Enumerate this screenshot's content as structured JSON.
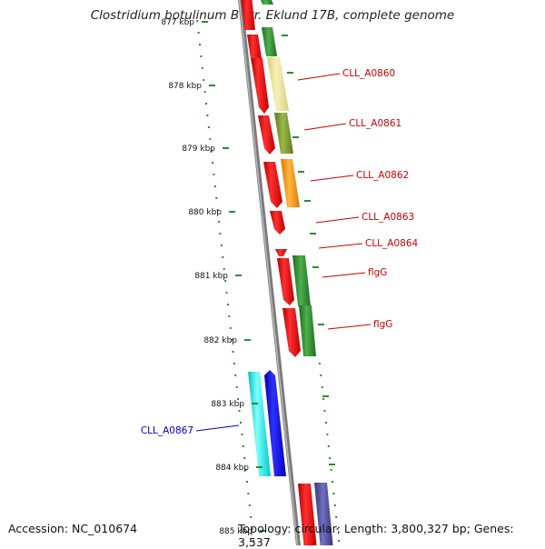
{
  "title": "Clostridium botulinum B str. Eklund 17B, complete genome",
  "accession": "Accession: NC_010674",
  "topology": "Topology: circular; Length: 3,800,327 bp; Genes: 3,537",
  "ticks": [
    "877 kbp",
    "878 kbp",
    "879 kbp",
    "880 kbp",
    "881 kbp",
    "882 kbp",
    "883 kbp",
    "884 kbp",
    "885 kbp"
  ],
  "gene_labels": [
    {
      "text": "CLL_A0860",
      "color": "#cc0000"
    },
    {
      "text": "CLL_A0861",
      "color": "#cc0000"
    },
    {
      "text": "CLL_A0862",
      "color": "#cc0000"
    },
    {
      "text": "CLL_A0863",
      "color": "#cc0000"
    },
    {
      "text": "CLL_A0864",
      "color": "#cc0000"
    },
    {
      "text": "flgG",
      "color": "#cc0000"
    },
    {
      "text": "flgG",
      "color": "#cc0000"
    },
    {
      "text": "CLL_A0867",
      "color": "#0000cc"
    }
  ],
  "colors": {
    "red": "#ee0000",
    "green": "#2e8b2e",
    "khaki": "#ece49a",
    "olive": "#7d9a2e",
    "orange": "#ff9a00",
    "cyan": "#00e8e8",
    "blue": "#0000ee",
    "slate": "#4a4a9a",
    "backbone": "#888888",
    "tick_green": "#2e8b2e"
  }
}
